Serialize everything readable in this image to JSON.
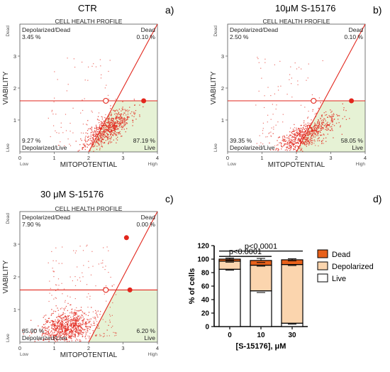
{
  "panels": [
    {
      "id": "a",
      "title": "CTR",
      "letter": "a)",
      "profile_label": "CELL HEALTH PROFILE",
      "ylabel": "VIABILITY",
      "xlabel": "MITOPOTENTIAL",
      "x_low": "Low",
      "x_high": "High",
      "y_dead": "Dead",
      "y_live": "Live",
      "x_ticks": [
        "0",
        "1",
        "2",
        "3",
        "4"
      ],
      "y_ticks": [
        "1",
        "2",
        "3"
      ],
      "quadrants": {
        "tl_name": "Depolarized/Dead",
        "tl_value": "3.45 %",
        "tr_name": "Dead",
        "tr_value": "0.10 %",
        "bl_value": "9.27 %",
        "bl_name": "Depolarized/Live",
        "br_value": "87.19 %",
        "br_name": "Live"
      },
      "gate": {
        "h_y": 1.6,
        "line_x0": 2.0,
        "line_x1": 4.0,
        "line_y1": 4.0,
        "open_x": 2.5,
        "filled": [
          [
            3.6,
            1.6
          ]
        ]
      },
      "cloud": {
        "cx": 2.55,
        "cy": 0.75,
        "sx": 0.33,
        "sy": 0.3,
        "rho": 0.7,
        "n": 700,
        "sparse": 90
      }
    },
    {
      "id": "b",
      "title": "10μM S-15176",
      "letter": "b)",
      "profile_label": "CELL HEALTH PROFILE",
      "ylabel": "VIABILITY",
      "xlabel": "MITOPOTENTIAL",
      "x_low": "Low",
      "x_high": "High",
      "y_dead": "Dead",
      "y_live": "Live",
      "x_ticks": [
        "0",
        "1",
        "2",
        "3",
        "4"
      ],
      "y_ticks": [
        "1",
        "2",
        "3"
      ],
      "quadrants": {
        "tl_name": "Depolarized/Dead",
        "tl_value": "2.50 %",
        "tr_name": "Dead",
        "tr_value": "0.10 %",
        "bl_value": "39.35 %",
        "bl_name": "Depolarized/Live",
        "br_value": "58.05 %",
        "br_name": "Live"
      },
      "gate": {
        "h_y": 1.6,
        "line_x0": 2.0,
        "line_x1": 4.0,
        "line_y1": 4.0,
        "open_x": 2.5,
        "filled": [
          [
            3.6,
            1.6
          ]
        ]
      },
      "cloud": {
        "cx": 2.25,
        "cy": 0.55,
        "sx": 0.45,
        "sy": 0.3,
        "rho": 0.75,
        "n": 700,
        "sparse": 110
      }
    },
    {
      "id": "c",
      "title": "30 μM S-15176",
      "letter": "c)",
      "profile_label": "CELL HEALTH PROFILE",
      "ylabel": "VIABILITY",
      "xlabel": "MITOPOTENTIAL",
      "x_low": "Low",
      "x_high": "High",
      "y_dead": "Dead",
      "y_live": "Live",
      "x_ticks": [
        "0",
        "1",
        "2",
        "3",
        "4"
      ],
      "y_ticks": [
        "1",
        "2",
        "3"
      ],
      "quadrants": {
        "tl_name": "Depolarized/Dead",
        "tl_value": "7.90 %",
        "tr_name": "Dead",
        "tr_value": "0.00 %",
        "bl_value": "85.90 %",
        "bl_name": "Depolarized/Live",
        "br_value": "6.20 %",
        "br_name": "Live"
      },
      "gate": {
        "h_y": 1.6,
        "line_x0": 2.0,
        "line_x1": 4.0,
        "line_y1": 4.0,
        "open_x": 2.5,
        "filled": [
          [
            3.1,
            3.2
          ],
          [
            3.2,
            1.6
          ]
        ]
      },
      "cloud": {
        "cx": 1.35,
        "cy": 0.45,
        "sx": 0.38,
        "sy": 0.25,
        "rho": 0.2,
        "n": 800,
        "sparse": 200
      }
    }
  ],
  "chart_data": {
    "type": "bar",
    "stacked": true,
    "letter": "d)",
    "categories": [
      "0",
      "10",
      "30"
    ],
    "xlabel": "[S-15176], μM",
    "ylabel": "% of cells",
    "ylim": [
      0,
      120
    ],
    "yticks": [
      "0",
      "20",
      "40",
      "60",
      "80",
      "100",
      "120"
    ],
    "series": [
      {
        "name": "Live",
        "values": [
          85,
          53,
          5
        ],
        "color": "#ffffff"
      },
      {
        "name": "Depolarized",
        "values": [
          12,
          38,
          87
        ],
        "color": "#fbd5ae"
      },
      {
        "name": "Dead",
        "values": [
          3,
          7,
          7
        ],
        "color": "#e8611a"
      }
    ],
    "errors": {
      "Live": [
        1.5,
        2.5,
        1.5
      ],
      "Depolarized": [
        1.5,
        1.5,
        1.5
      ],
      "Dead": [
        1.5,
        3,
        1.5
      ]
    },
    "annotations": [
      {
        "text": "p<0.0001",
        "from": 0,
        "to": 2,
        "y": 112
      },
      {
        "text": "p<0.0001",
        "from": 0,
        "to": 1,
        "y": 104
      }
    ],
    "legend": "right"
  }
}
